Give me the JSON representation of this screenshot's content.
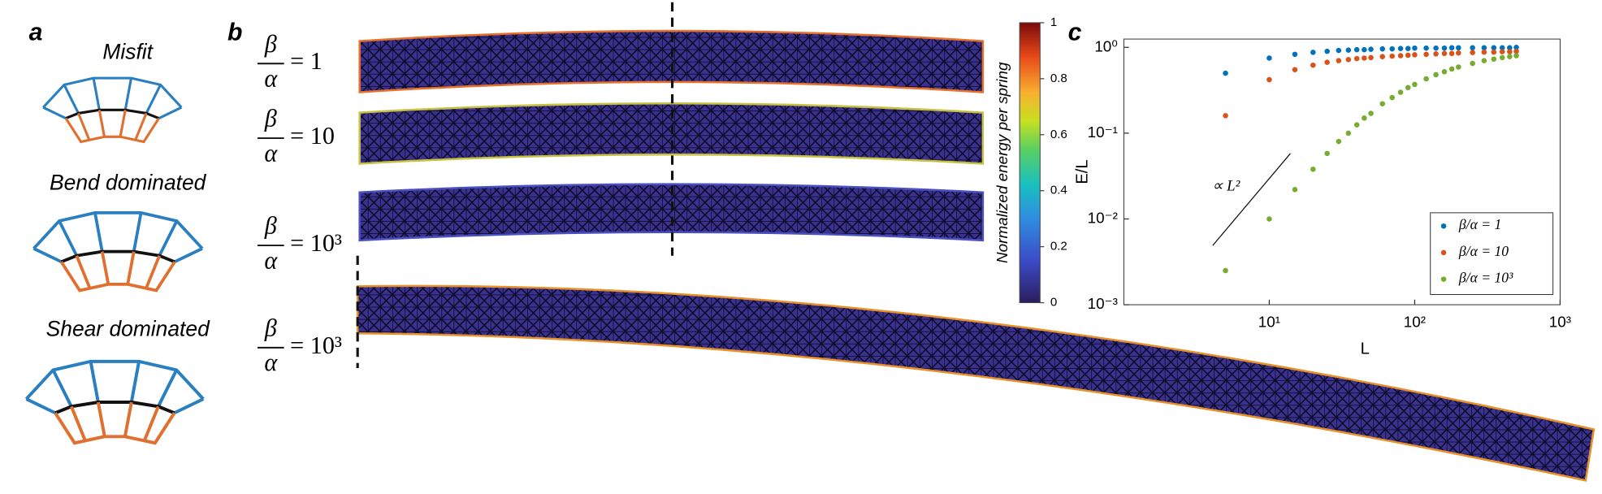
{
  "panel_a": {
    "label": "a",
    "titles": [
      "Misfit",
      "Bend dominated",
      "Shear dominated"
    ]
  },
  "panel_b": {
    "label": "b",
    "ratios": [
      {
        "numerator": "β",
        "denominator": "α",
        "rhs": "= 1"
      },
      {
        "numerator": "β",
        "denominator": "α",
        "rhs": "= 10"
      },
      {
        "numerator": "β",
        "denominator": "α",
        "rhs": "= 10³"
      },
      {
        "numerator": "β",
        "denominator": "α",
        "rhs": "= 10³"
      }
    ],
    "colorbar": {
      "title": "Normalized energy per spring",
      "lim": [
        0,
        1
      ],
      "ticks": [
        0,
        0.2,
        0.4,
        0.6,
        0.8,
        1
      ]
    }
  },
  "panel_c": {
    "label": "c"
  },
  "chart_data": {
    "type": "scatter",
    "xlabel": "L",
    "ylabel": "E/L",
    "log_x": true,
    "log_y": true,
    "xlim": [
      1,
      1000
    ],
    "ylim": [
      0.001,
      1.25
    ],
    "xticks": [
      {
        "value": 10,
        "label": "10¹"
      },
      {
        "value": 100,
        "label": "10²"
      },
      {
        "value": 1000,
        "label": "10³"
      }
    ],
    "yticks": [
      {
        "value": 0.001,
        "label": "10⁻³"
      },
      {
        "value": 0.01,
        "label": "10⁻²"
      },
      {
        "value": 0.1,
        "label": "10⁻¹"
      },
      {
        "value": 1,
        "label": "10⁰"
      }
    ],
    "legend": "lower right",
    "annotation": "∝ L²",
    "x": [
      5,
      10,
      15,
      20,
      25,
      30,
      35,
      40,
      45,
      50,
      60,
      70,
      80,
      90,
      100,
      120,
      140,
      160,
      180,
      200,
      250,
      300,
      350,
      400,
      450,
      500
    ],
    "series": [
      {
        "name": "β/α = 1",
        "color": "#0072BD",
        "values": [
          0.5,
          0.75,
          0.83,
          0.875,
          0.9,
          0.92,
          0.93,
          0.94,
          0.94,
          0.95,
          0.96,
          0.96,
          0.97,
          0.97,
          0.98,
          0.98,
          0.98,
          0.98,
          0.99,
          0.99,
          0.99,
          0.99,
          0.99,
          0.99,
          0.99,
          1.0
        ]
      },
      {
        "name": "β/α = 10",
        "color": "#D95319",
        "values": [
          0.16,
          0.42,
          0.55,
          0.62,
          0.67,
          0.7,
          0.72,
          0.74,
          0.75,
          0.76,
          0.78,
          0.79,
          0.8,
          0.81,
          0.82,
          0.83,
          0.84,
          0.85,
          0.85,
          0.86,
          0.87,
          0.88,
          0.88,
          0.89,
          0.89,
          0.9
        ]
      },
      {
        "name": "β/α = 10³",
        "color": "#77AC30",
        "values": [
          0.0025,
          0.01,
          0.022,
          0.038,
          0.058,
          0.08,
          0.1,
          0.125,
          0.15,
          0.17,
          0.22,
          0.26,
          0.3,
          0.34,
          0.37,
          0.43,
          0.48,
          0.52,
          0.56,
          0.59,
          0.65,
          0.7,
          0.73,
          0.76,
          0.78,
          0.8
        ]
      }
    ]
  }
}
